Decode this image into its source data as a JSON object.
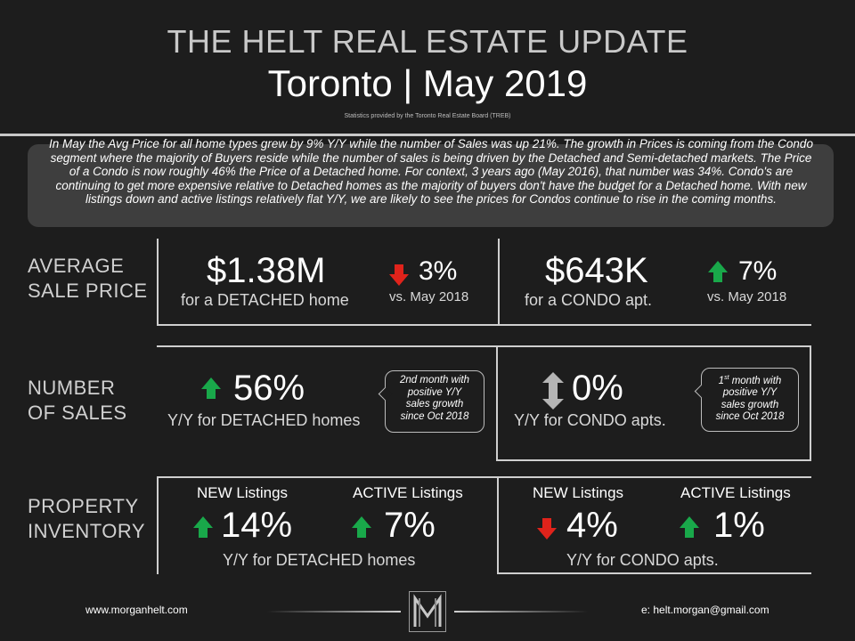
{
  "header": {
    "title_top": "THE HELT REAL ESTATE UPDATE",
    "title_main": "Toronto | May 2019",
    "source": "Statistics provided by the Toronto Real Estate Board (TREB)"
  },
  "summary": "In May the Avg Price for all home types grew by 9% Y/Y while the number of Sales was up 21%. The growth in Prices is coming from the Condo segment where the majority of Buyers reside while the number of sales is being driven by the Detached and Semi-detached markets. The Price of a Condo is now roughly 46% the Price of a Detached home. For context, 3 years ago (May 2016), that number was 34%. Condo's are continuing to get more expensive relative to Detached homes as the majority of buyers don't have the budget for a Detached home. With new listings down and active listings relatively flat Y/Y, we are likely to see the prices for Condos continue to rise in the coming months.",
  "rows": {
    "avg_price": {
      "label_line1": "AVERAGE",
      "label_line2": "SALE PRICE",
      "detached": {
        "value": "$1.38M",
        "caption": "for a DETACHED home",
        "change": "3%",
        "direction": "down",
        "compare": "vs. May 2018"
      },
      "condo": {
        "value": "$643K",
        "caption": "for a CONDO apt.",
        "change": "7%",
        "direction": "up",
        "compare": "vs. May 2018"
      }
    },
    "sales": {
      "label_line1": "NUMBER",
      "label_line2": "OF SALES",
      "detached": {
        "value": "56%",
        "caption": "Y/Y for DETACHED homes",
        "direction": "up",
        "note_line1": "2nd month with",
        "note_line2": "positive Y/Y",
        "note_line3": "sales growth",
        "note_line4": "since Oct 2018"
      },
      "condo": {
        "value": "0%",
        "caption": "Y/Y for CONDO apts.",
        "direction": "flat",
        "note_num": "1",
        "note_sup": "st",
        "note_line1_rest": " month with",
        "note_line2": "positive Y/Y",
        "note_line3": "sales growth",
        "note_line4": "since Oct 2018"
      }
    },
    "inventory": {
      "label_line1": "PROPERTY",
      "label_line2": "INVENTORY",
      "detached": {
        "new_label": "NEW Listings",
        "new_value": "14%",
        "new_direction": "up",
        "active_label": "ACTIVE Listings",
        "active_value": "7%",
        "active_direction": "up",
        "caption": "Y/Y for DETACHED homes"
      },
      "condo": {
        "new_label": "NEW Listings",
        "new_value": "4%",
        "new_direction": "down",
        "active_label": "ACTIVE Listings",
        "active_value": "1%",
        "active_direction": "up",
        "caption": "Y/Y for CONDO apts."
      }
    }
  },
  "footer": {
    "website": "www.morganhelt.com",
    "email": "e: helt.morgan@gmail.com",
    "logo": "M"
  },
  "colors": {
    "background": "#1d1d1d",
    "summary_box": "#3e3e3e",
    "up_arrow": "#19a84a",
    "down_arrow": "#e0231b",
    "flat_arrow": "#b5b5b5"
  }
}
